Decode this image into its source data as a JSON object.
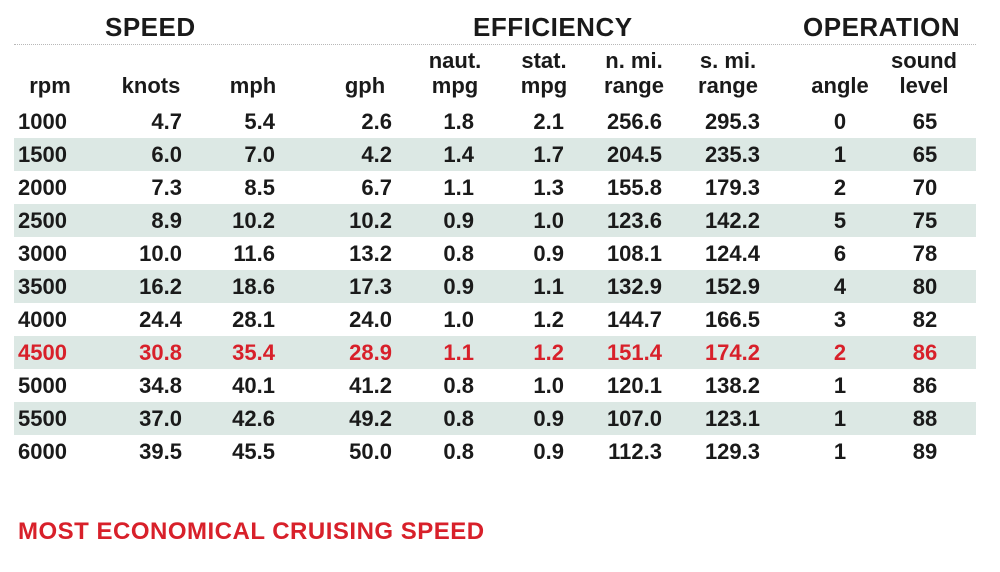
{
  "groups": {
    "speed": "SPEED",
    "efficiency": "EFFICIENCY",
    "operation": "OPERATION"
  },
  "columns": {
    "rpm": [
      "",
      "rpm"
    ],
    "knots": [
      "",
      "knots"
    ],
    "mph": [
      "",
      "mph"
    ],
    "gph": [
      "",
      "gph"
    ],
    "naut_mpg": [
      "naut.",
      "mpg"
    ],
    "stat_mpg": [
      "stat.",
      "mpg"
    ],
    "nmi_range": [
      "n. mi.",
      "range"
    ],
    "smi_range": [
      "s. mi.",
      "range"
    ],
    "angle": [
      "",
      "angle"
    ],
    "sound": [
      "sound",
      "level"
    ]
  },
  "rows": [
    [
      "1000",
      "4.7",
      "5.4",
      "2.6",
      "1.8",
      "2.1",
      "256.6",
      "295.3",
      "0",
      "65"
    ],
    [
      "1500",
      "6.0",
      "7.0",
      "4.2",
      "1.4",
      "1.7",
      "204.5",
      "235.3",
      "1",
      "65"
    ],
    [
      "2000",
      "7.3",
      "8.5",
      "6.7",
      "1.1",
      "1.3",
      "155.8",
      "179.3",
      "2",
      "70"
    ],
    [
      "2500",
      "8.9",
      "10.2",
      "10.2",
      "0.9",
      "1.0",
      "123.6",
      "142.2",
      "5",
      "75"
    ],
    [
      "3000",
      "10.0",
      "11.6",
      "13.2",
      "0.8",
      "0.9",
      "108.1",
      "124.4",
      "6",
      "78"
    ],
    [
      "3500",
      "16.2",
      "18.6",
      "17.3",
      "0.9",
      "1.1",
      "132.9",
      "152.9",
      "4",
      "80"
    ],
    [
      "4000",
      "24.4",
      "28.1",
      "24.0",
      "1.0",
      "1.2",
      "144.7",
      "166.5",
      "3",
      "82"
    ],
    [
      "4500",
      "30.8",
      "35.4",
      "28.9",
      "1.1",
      "1.2",
      "151.4",
      "174.2",
      "2",
      "86"
    ],
    [
      "5000",
      "34.8",
      "40.1",
      "41.2",
      "0.8",
      "1.0",
      "120.1",
      "138.2",
      "1",
      "86"
    ],
    [
      "5500",
      "37.0",
      "42.6",
      "49.2",
      "0.8",
      "0.9",
      "107.0",
      "123.1",
      "1",
      "88"
    ],
    [
      "6000",
      "39.5",
      "45.5",
      "50.0",
      "0.8",
      "0.9",
      "112.3",
      "129.3",
      "1",
      "89"
    ]
  ],
  "highlight_row_index": 7,
  "footnote": "MOST ECONOMICAL CRUISING SPEED",
  "colors": {
    "text": "#1a1a1a",
    "highlight": "#d8202a",
    "row_shade": "#dce8e4"
  }
}
